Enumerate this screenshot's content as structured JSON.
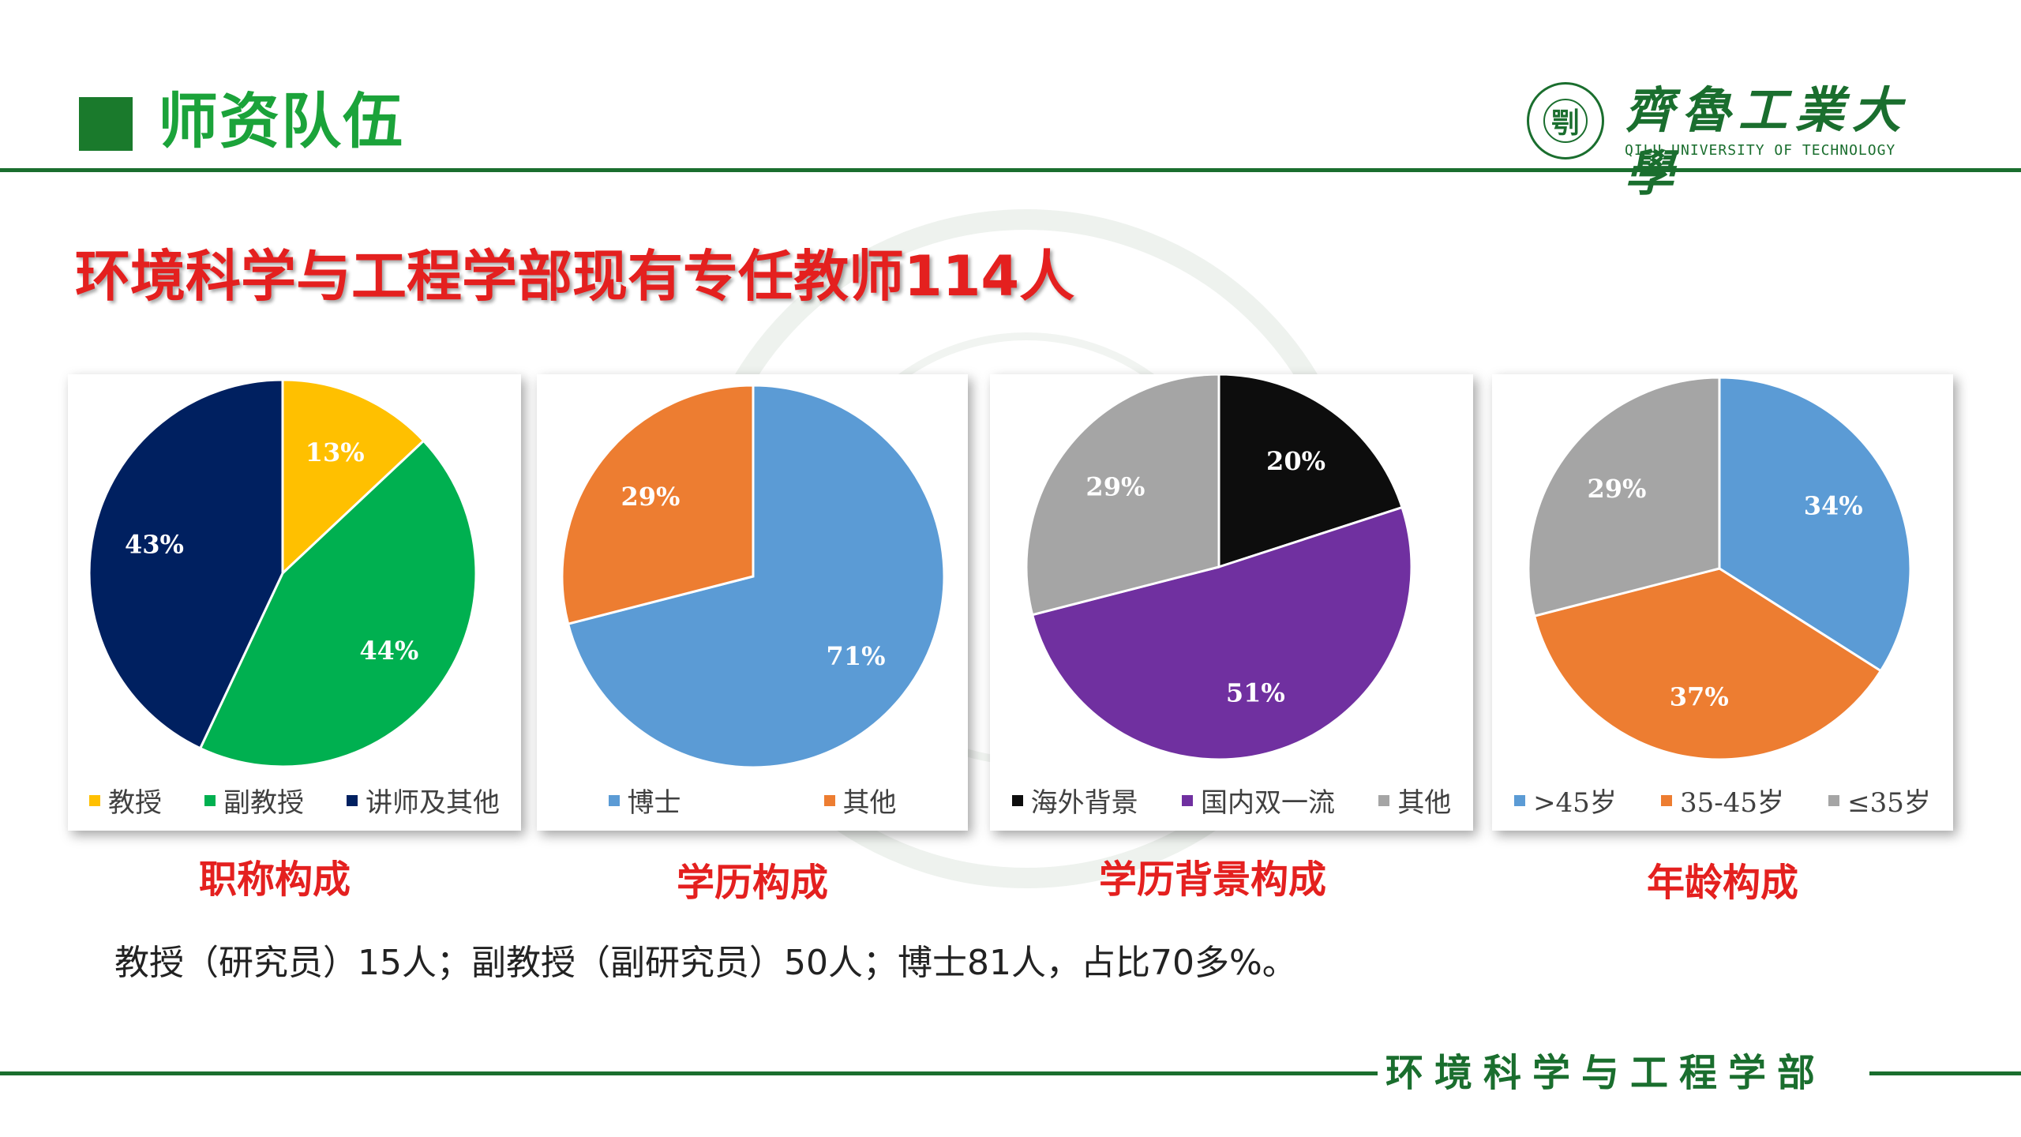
{
  "header": {
    "section_title": "师资队伍",
    "logo_name": "齊魯工業大學",
    "logo_en": "QILU UNIVERSITY OF TECHNOLOGY",
    "logo_mark": "㓵"
  },
  "headline": "环境科学与工程学部现有专任教师114人",
  "colors": {
    "brand_green": "#1a6e2e",
    "title_green": "#1ba33a",
    "accent_red": "#e4201f"
  },
  "chart_data": [
    {
      "type": "pie",
      "caption": "职称构成",
      "categories": [
        "教授",
        "副教授",
        "讲师及其他"
      ],
      "values": [
        13,
        44,
        43
      ],
      "labels": [
        "13%",
        "44%",
        "43%"
      ],
      "colors": [
        "#ffc000",
        "#00b050",
        "#002060"
      ],
      "legend_position": "bottom"
    },
    {
      "type": "pie",
      "caption": "学历构成",
      "categories": [
        "博士",
        "其他"
      ],
      "values": [
        71,
        29
      ],
      "labels": [
        "71%",
        "29%"
      ],
      "colors": [
        "#5b9bd5",
        "#ed7d31"
      ],
      "legend_position": "bottom"
    },
    {
      "type": "pie",
      "caption": "学历背景构成",
      "categories": [
        "海外背景",
        "国内双一流",
        "其他"
      ],
      "values": [
        20,
        51,
        29
      ],
      "labels": [
        "20%",
        "51%",
        "29%"
      ],
      "colors": [
        "#0d0d0d",
        "#7030a0",
        "#a5a5a5"
      ],
      "legend_position": "bottom"
    },
    {
      "type": "pie",
      "caption": "年龄构成",
      "categories": [
        ">45岁",
        "35-45岁",
        "≤35岁"
      ],
      "values": [
        34,
        37,
        29
      ],
      "labels": [
        "34%",
        "37%",
        "29%"
      ],
      "colors": [
        "#5b9bd5",
        "#ed7d31",
        "#a5a5a5"
      ],
      "legend_position": "bottom"
    }
  ],
  "summary": "教授（研究员）15人；副教授（副研究员）50人；博士81人，占比70多%。",
  "footer": "环境科学与工程学部"
}
